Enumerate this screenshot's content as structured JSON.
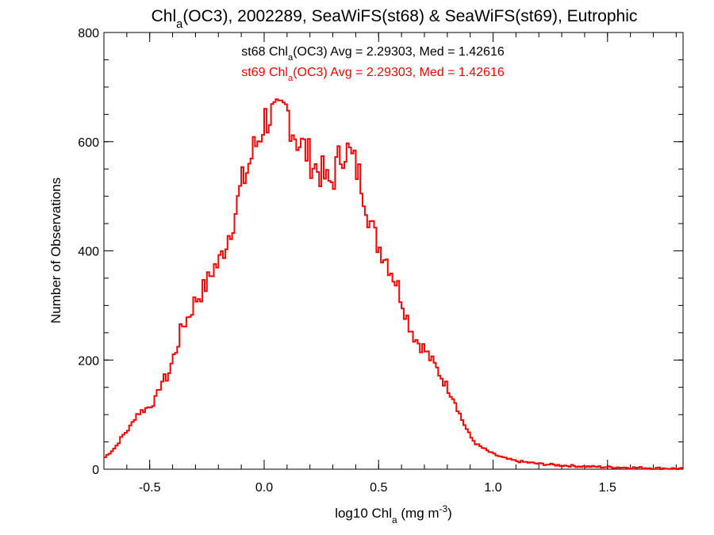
{
  "chart_data": {
    "type": "histogram-step",
    "title": {
      "parts": [
        {
          "t": "Chl",
          "s": "n"
        },
        {
          "t": "a",
          "s": "sub"
        },
        {
          "t": "(OC3), 2002289, SeaWiFS(st68) & SeaWiFS(st69), Eutrophic",
          "s": "n"
        }
      ]
    },
    "xlabel": {
      "parts": [
        {
          "t": "log10 Chl",
          "s": "n"
        },
        {
          "t": "a",
          "s": "sub"
        },
        {
          "t": " (mg m",
          "s": "n"
        },
        {
          "t": "-3",
          "s": "sup"
        },
        {
          "t": ")",
          "s": "n"
        }
      ]
    },
    "ylabel": "Number of Observations",
    "xlim": [
      -0.7,
      1.83
    ],
    "ylim": [
      0,
      800
    ],
    "xticks": [
      -0.5,
      0.0,
      0.5,
      1.0,
      1.5
    ],
    "xtick_labels": [
      "-0.5",
      "0.0",
      "0.5",
      "1.0",
      "1.5"
    ],
    "yticks": [
      0,
      200,
      400,
      600,
      800
    ],
    "ytick_labels": [
      "0",
      "200",
      "400",
      "600",
      "800"
    ],
    "annotations": [
      {
        "color": "#000000",
        "parts": [
          {
            "t": "st68 Chl",
            "s": "n"
          },
          {
            "t": "a",
            "s": "sub"
          },
          {
            "t": "(OC3) Avg = 2.29303, Med = 1.42616",
            "s": "n"
          }
        ]
      },
      {
        "color": "#ff0000",
        "parts": [
          {
            "t": "st69 Chl",
            "s": "n"
          },
          {
            "t": "a",
            "s": "sub"
          },
          {
            "t": "(OC3) Avg = 2.29303, Med = 1.42616",
            "s": "n"
          }
        ]
      }
    ],
    "series": [
      {
        "color": "#ff0000"
      }
    ],
    "bin_width": 0.01,
    "x_start": -0.7,
    "key_points": [
      [
        -0.7,
        20
      ],
      [
        -0.68,
        28
      ],
      [
        -0.65,
        40
      ],
      [
        -0.62,
        60
      ],
      [
        -0.58,
        80
      ],
      [
        -0.56,
        100
      ],
      [
        -0.54,
        105
      ],
      [
        -0.5,
        115
      ],
      [
        -0.47,
        130
      ],
      [
        -0.45,
        160
      ],
      [
        -0.42,
        170
      ],
      [
        -0.4,
        200
      ],
      [
        -0.38,
        225
      ],
      [
        -0.36,
        260
      ],
      [
        -0.33,
        280
      ],
      [
        -0.3,
        310
      ],
      [
        -0.28,
        320
      ],
      [
        -0.25,
        340
      ],
      [
        -0.22,
        370
      ],
      [
        -0.2,
        375
      ],
      [
        -0.17,
        410
      ],
      [
        -0.14,
        450
      ],
      [
        -0.12,
        480
      ],
      [
        -0.1,
        520
      ],
      [
        -0.08,
        540
      ],
      [
        -0.05,
        580
      ],
      [
        -0.02,
        610
      ],
      [
        0.0,
        640
      ],
      [
        0.03,
        650
      ],
      [
        0.06,
        640
      ],
      [
        0.08,
        650
      ],
      [
        0.1,
        660
      ],
      [
        0.12,
        630
      ],
      [
        0.15,
        600
      ],
      [
        0.18,
        585
      ],
      [
        0.2,
        570
      ],
      [
        0.23,
        550
      ],
      [
        0.26,
        540
      ],
      [
        0.28,
        520
      ],
      [
        0.3,
        530
      ],
      [
        0.32,
        560
      ],
      [
        0.35,
        590
      ],
      [
        0.37,
        580
      ],
      [
        0.4,
        555
      ],
      [
        0.43,
        520
      ],
      [
        0.46,
        460
      ],
      [
        0.48,
        430
      ],
      [
        0.5,
        410
      ],
      [
        0.53,
        390
      ],
      [
        0.56,
        360
      ],
      [
        0.58,
        340
      ],
      [
        0.61,
        300
      ],
      [
        0.63,
        270
      ],
      [
        0.66,
        240
      ],
      [
        0.7,
        220
      ],
      [
        0.73,
        200
      ],
      [
        0.76,
        180
      ],
      [
        0.8,
        150
      ],
      [
        0.83,
        130
      ],
      [
        0.86,
        95
      ],
      [
        0.9,
        60
      ],
      [
        0.93,
        45
      ],
      [
        0.97,
        35
      ],
      [
        1.0,
        28
      ],
      [
        1.05,
        20
      ],
      [
        1.1,
        15
      ],
      [
        1.2,
        10
      ],
      [
        1.3,
        7
      ],
      [
        1.4,
        5
      ],
      [
        1.5,
        4
      ],
      [
        1.6,
        3
      ],
      [
        1.7,
        2
      ],
      [
        1.82,
        1
      ]
    ]
  }
}
